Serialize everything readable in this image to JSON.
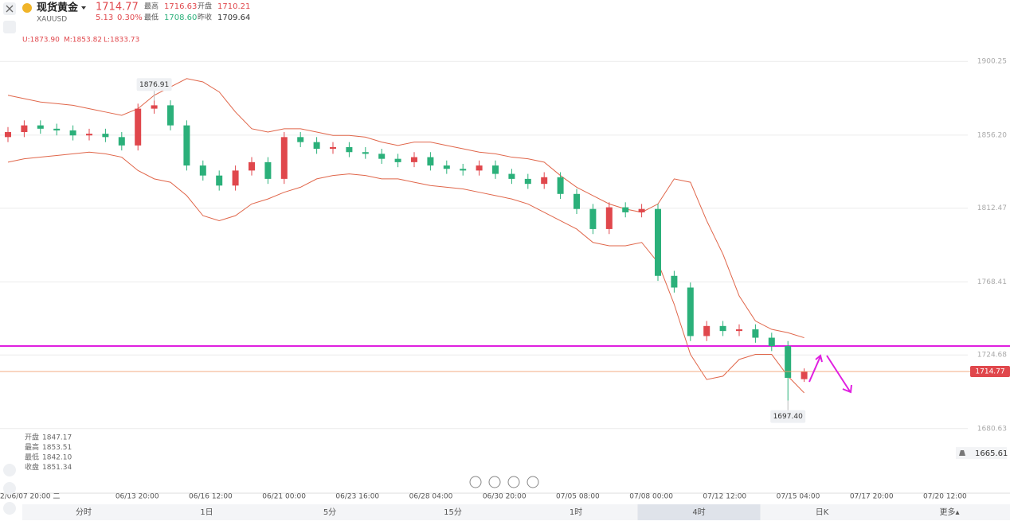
{
  "header": {
    "name": "现货黄金",
    "symbol": "XAUUSD",
    "price": "1714.77",
    "change": "5.13",
    "change_pct": "0.30%",
    "high_label": "最高",
    "high": "1716.63",
    "open_label": "开盘",
    "open": "1710.21",
    "low_label": "最低",
    "low": "1708.60",
    "prev_label": "昨收",
    "prev": "1709.64"
  },
  "indicator": {
    "upper": "U:1873.90",
    "mid": "M:1853.82",
    "lower": "L:1833.73"
  },
  "info": [
    [
      "开盘",
      "1847.17"
    ],
    [
      "最高",
      "1853.51"
    ],
    [
      "最低",
      "1842.10"
    ],
    [
      "收盘",
      "1851.34"
    ]
  ],
  "alert_price": "1665.61",
  "tabs": [
    "分时",
    "1日",
    "5分",
    "15分",
    "1时",
    "4时",
    "日K",
    "更多▴"
  ],
  "active_tab": 5,
  "chart_data": {
    "type": "candlestick",
    "x_labels": [
      "2/06/07 20:00 二",
      "06/13 20:00",
      "06/16 12:00",
      "06/21 00:00",
      "06/23 16:00",
      "06/28 04:00",
      "06/30 20:00",
      "07/05 08:00",
      "07/08 00:00",
      "07/12 12:00",
      "07/15 04:00",
      "07/17 20:00",
      "07/20 12:00"
    ],
    "open": [
      1855,
      1858,
      1862,
      1860,
      1859,
      1856,
      1857,
      1855,
      1850,
      1872,
      1874,
      1862,
      1838,
      1832,
      1826,
      1835,
      1840,
      1830,
      1855,
      1852,
      1848,
      1849,
      1846,
      1845,
      1842,
      1840,
      1843,
      1838,
      1836,
      1835,
      1838,
      1833,
      1830,
      1827,
      1831,
      1821,
      1812,
      1800,
      1813,
      1810,
      1812,
      1772,
      1765,
      1736,
      1742,
      1739,
      1740,
      1735,
      1730,
      1710.21
    ],
    "high": [
      1861,
      1865,
      1865,
      1863,
      1862,
      1860,
      1860,
      1858,
      1875,
      1876.91,
      1877,
      1865,
      1841,
      1835,
      1838,
      1843,
      1843,
      1858,
      1858,
      1855,
      1852,
      1852,
      1849,
      1848,
      1845,
      1846,
      1846,
      1841,
      1839,
      1841,
      1841,
      1836,
      1833,
      1834,
      1834,
      1824,
      1815,
      1816,
      1816,
      1815,
      1815,
      1775,
      1768,
      1745,
      1745,
      1743,
      1743,
      1738,
      1733,
      1716.63
    ],
    "low": [
      1852,
      1855,
      1857,
      1856,
      1853,
      1853,
      1852,
      1847,
      1847,
      1869,
      1859,
      1835,
      1829,
      1823,
      1823,
      1832,
      1827,
      1827,
      1849,
      1845,
      1845,
      1843,
      1842,
      1839,
      1837,
      1837,
      1835,
      1833,
      1832,
      1832,
      1830,
      1827,
      1824,
      1824,
      1818,
      1809,
      1797,
      1797,
      1807,
      1807,
      1769,
      1762,
      1733,
      1733,
      1736,
      1736,
      1732,
      1727,
      1697.4,
      1708.6
    ],
    "close": [
      1858,
      1862,
      1860,
      1859,
      1856,
      1857,
      1855,
      1850,
      1872,
      1874,
      1862,
      1838,
      1832,
      1826,
      1835,
      1840,
      1830,
      1855,
      1852,
      1848,
      1849,
      1846,
      1845,
      1842,
      1840,
      1843,
      1838,
      1836,
      1835,
      1838,
      1833,
      1830,
      1827,
      1831,
      1821,
      1812,
      1800,
      1813,
      1810,
      1812,
      1772,
      1765,
      1736,
      1742,
      1739,
      1740,
      1735,
      1730,
      1711,
      1714.77
    ],
    "up_color": "#e0474c",
    "down_color": "#2bb07a",
    "bands": [
      {
        "color": "#e0664a",
        "values": [
          1880,
          1878,
          1876,
          1875,
          1874,
          1872,
          1870,
          1868,
          1872,
          1880,
          1885,
          1890,
          1888,
          1882,
          1870,
          1860,
          1858,
          1860,
          1860,
          1858,
          1856,
          1856,
          1855,
          1852,
          1850,
          1852,
          1852,
          1850,
          1848,
          1846,
          1845,
          1843,
          1842,
          1840,
          1832,
          1825,
          1820,
          1815,
          1812,
          1810,
          1815,
          1830,
          1828,
          1805,
          1785,
          1760,
          1745,
          1740,
          1738,
          1735
        ]
      },
      {
        "color": "#e0664a",
        "values": [
          1840,
          1842,
          1843,
          1844,
          1845,
          1846,
          1845,
          1843,
          1835,
          1830,
          1828,
          1820,
          1808,
          1805,
          1808,
          1815,
          1818,
          1822,
          1825,
          1830,
          1832,
          1833,
          1832,
          1830,
          1830,
          1828,
          1826,
          1825,
          1824,
          1822,
          1820,
          1818,
          1815,
          1810,
          1805,
          1800,
          1792,
          1790,
          1790,
          1792,
          1780,
          1755,
          1725,
          1710,
          1712,
          1722,
          1725,
          1725,
          1712,
          1702
        ]
      }
    ],
    "hline": 1730,
    "hline_color": "#e020e0",
    "annotations": [
      {
        "text": "1876.91",
        "value": 1876.91,
        "index": 9
      },
      {
        "text": "1697.40",
        "value": 1697.4,
        "index": 48
      }
    ],
    "ylim": [
      1642,
      1937
    ],
    "yticks": [
      1900.25,
      {
        "value": 1856.2,
        "label": "1856.20"
      },
      1812.47,
      1768.41,
      1724.68,
      1680.63
    ],
    "grid": true
  }
}
